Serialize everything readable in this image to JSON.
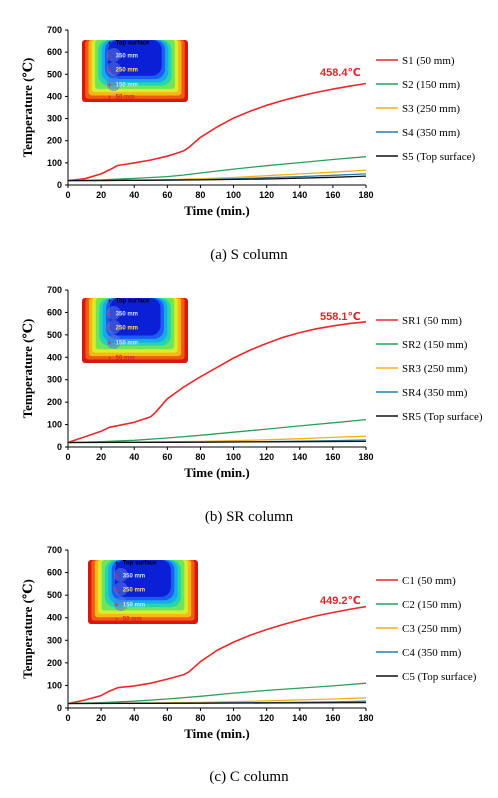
{
  "colors": {
    "series": [
      "#e8282b",
      "#2aa05a",
      "#f2b21a",
      "#2a7fa8",
      "#111111"
    ],
    "peak_label": "#e0242a",
    "inset_heat_scale": [
      "#0a1fd6",
      "#1c5cf2",
      "#18a9ea",
      "#23d6b0",
      "#6fe65a",
      "#d8ee2a",
      "#f8b618",
      "#f35a14",
      "#d8180e"
    ]
  },
  "inset_labels": [
    "Top surface",
    "350 mm",
    "250 mm",
    "150 mm",
    "50 mm"
  ],
  "chart_data": [
    {
      "type": "line",
      "caption": "(a) S column",
      "xlabel": "Time (min.)",
      "ylabel": "Temperature (℃)",
      "xlim": [
        0,
        180
      ],
      "ylim": [
        0,
        700
      ],
      "xticks": [
        0,
        20,
        40,
        60,
        80,
        100,
        120,
        140,
        160,
        180
      ],
      "yticks": [
        0,
        100,
        200,
        300,
        400,
        500,
        600,
        700
      ],
      "peak_label": "458.4℃",
      "series": [
        {
          "name": "S1 (50 mm)",
          "x": [
            0,
            10,
            20,
            25,
            30,
            40,
            50,
            60,
            65,
            70,
            73,
            80,
            90,
            100,
            110,
            120,
            130,
            140,
            150,
            160,
            170,
            180
          ],
          "values": [
            20,
            28,
            50,
            68,
            88,
            100,
            113,
            130,
            142,
            155,
            170,
            215,
            262,
            302,
            333,
            360,
            382,
            401,
            418,
            433,
            446,
            458.4
          ]
        },
        {
          "name": "S2 (150 mm)",
          "x": [
            0,
            20,
            40,
            60,
            70,
            80,
            100,
            120,
            140,
            160,
            180
          ],
          "values": [
            20,
            23,
            30,
            38,
            45,
            54,
            72,
            87,
            101,
            115,
            128
          ]
        },
        {
          "name": "S3 (250 mm)",
          "x": [
            0,
            20,
            40,
            60,
            80,
            100,
            120,
            140,
            160,
            180
          ],
          "values": [
            20,
            21,
            22,
            24,
            28,
            34,
            42,
            50,
            58,
            67
          ]
        },
        {
          "name": "S4 (350 mm)",
          "x": [
            0,
            20,
            40,
            60,
            80,
            100,
            120,
            140,
            160,
            180
          ],
          "values": [
            20,
            20,
            21,
            22,
            24,
            28,
            33,
            38,
            44,
            50
          ]
        },
        {
          "name": "S5 (Top surface)",
          "x": [
            0,
            40,
            80,
            120,
            160,
            180
          ],
          "values": [
            20,
            21,
            23,
            27,
            35,
            40
          ]
        }
      ]
    },
    {
      "type": "line",
      "caption": "(b) SR column",
      "xlabel": "Time (min.)",
      "ylabel": "Temperature (℃)",
      "xlim": [
        0,
        180
      ],
      "ylim": [
        0,
        700
      ],
      "xticks": [
        0,
        20,
        40,
        60,
        80,
        100,
        120,
        140,
        160,
        180
      ],
      "yticks": [
        0,
        100,
        200,
        300,
        400,
        500,
        600,
        700
      ],
      "peak_label": "558.1℃",
      "series": [
        {
          "name": "SR1 (50 mm)",
          "x": [
            0,
            10,
            20,
            25,
            30,
            40,
            50,
            53,
            60,
            70,
            80,
            90,
            100,
            110,
            120,
            130,
            140,
            150,
            160,
            170,
            180
          ],
          "values": [
            20,
            45,
            70,
            88,
            95,
            110,
            135,
            155,
            215,
            268,
            313,
            355,
            397,
            432,
            462,
            489,
            510,
            527,
            540,
            550,
            558.1
          ]
        },
        {
          "name": "SR2 (150 mm)",
          "x": [
            0,
            20,
            40,
            60,
            80,
            100,
            120,
            140,
            160,
            180
          ],
          "values": [
            20,
            24,
            30,
            40,
            52,
            66,
            80,
            94,
            108,
            122
          ]
        },
        {
          "name": "SR3 (250 mm)",
          "x": [
            0,
            20,
            40,
            60,
            80,
            100,
            120,
            140,
            160,
            180
          ],
          "values": [
            20,
            21,
            22,
            23,
            25,
            28,
            32,
            37,
            43,
            48
          ]
        },
        {
          "name": "SR4 (350 mm)",
          "x": [
            0,
            40,
            80,
            120,
            160,
            180
          ],
          "values": [
            20,
            21,
            22,
            24,
            28,
            31
          ]
        },
        {
          "name": "SR5 (Top surface)",
          "x": [
            0,
            60,
            120,
            180
          ],
          "values": [
            20,
            21,
            23,
            25
          ]
        }
      ]
    },
    {
      "type": "line",
      "caption": "(c) C column",
      "xlabel": "Time (min.)",
      "ylabel": "Temperature (℃)",
      "xlim": [
        0,
        180
      ],
      "ylim": [
        0,
        700
      ],
      "xticks": [
        0,
        20,
        40,
        60,
        80,
        100,
        120,
        140,
        160,
        180
      ],
      "yticks": [
        0,
        100,
        200,
        300,
        400,
        500,
        600,
        700
      ],
      "peak_label": "449.2℃",
      "series": [
        {
          "name": "C1 (50 mm)",
          "x": [
            0,
            10,
            20,
            25,
            30,
            40,
            50,
            60,
            70,
            73,
            80,
            90,
            100,
            110,
            120,
            130,
            140,
            150,
            160,
            170,
            180
          ],
          "values": [
            20,
            35,
            55,
            75,
            90,
            98,
            110,
            128,
            148,
            160,
            205,
            255,
            292,
            322,
            348,
            370,
            390,
            408,
            423,
            437,
            449.2
          ]
        },
        {
          "name": "C2 (150 mm)",
          "x": [
            0,
            20,
            40,
            60,
            80,
            100,
            120,
            140,
            160,
            180
          ],
          "values": [
            20,
            24,
            30,
            40,
            52,
            66,
            78,
            88,
            98,
            110
          ]
        },
        {
          "name": "C3 (250 mm)",
          "x": [
            0,
            20,
            40,
            60,
            80,
            100,
            120,
            140,
            160,
            180
          ],
          "values": [
            20,
            21,
            22,
            23,
            25,
            28,
            32,
            36,
            40,
            45
          ]
        },
        {
          "name": "C4 (350 mm)",
          "x": [
            0,
            40,
            80,
            120,
            160,
            180
          ],
          "values": [
            20,
            21,
            22,
            24,
            27,
            30
          ]
        },
        {
          "name": "C5 (Top surface)",
          "x": [
            0,
            60,
            120,
            180
          ],
          "values": [
            20,
            21,
            22,
            24
          ]
        }
      ]
    }
  ]
}
